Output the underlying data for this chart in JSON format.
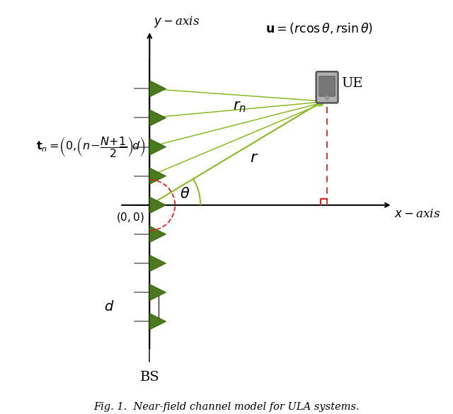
{
  "figsize": [
    6.4,
    5.85
  ],
  "dpi": 100,
  "bg_color": "#ffffff",
  "bs_x": 0.32,
  "antenna_y_positions": [
    3.2,
    2.4,
    1.6,
    0.8,
    0.0,
    -0.8,
    -1.6,
    -2.4,
    -3.2
  ],
  "antenna_color": "#4a7a1e",
  "antenna_color_dark": "#3a6010",
  "ue_x": 5.2,
  "ue_y": 2.8,
  "green_line_color": "#88bb22",
  "red_arc_color": "#dd2222",
  "red_line_color": "#dd2222",
  "caption": "Fig. 1.  Near-field channel model for ULA systems.",
  "caption_fontsize": 10.5,
  "xlim": [
    -3.5,
    7.5
  ],
  "ylim": [
    -4.8,
    5.2
  ]
}
